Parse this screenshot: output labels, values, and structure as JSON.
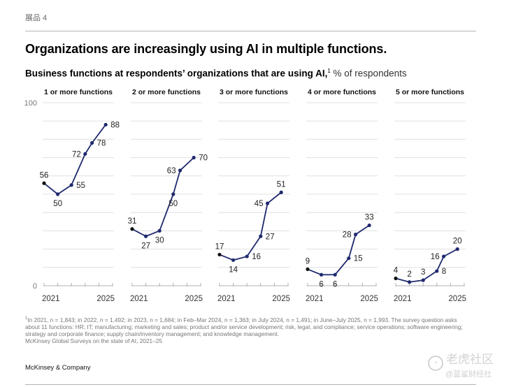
{
  "exhibit_label": "展品 4",
  "title": "Organizations are increasingly using AI in multiple functions.",
  "subtitle": {
    "main": "Business functions at respondents’ organizations that are using AI,",
    "footnote_marker": "1",
    "unit": " % of respondents"
  },
  "footnote": {
    "marker": "1",
    "text": "In 2021, n = 1,843; in 2022, n = 1,492; in 2023, n = 1,684; in Feb–Mar 2024, n = 1,363; in July 2024, n = 1,491; in June–July 2025, n = 1,993. The survey question asks about 11 functions: HR; IT; manufacturing; marketing and sales; product and/or service development; risk, legal, and compliance; service operations; software engineering; strategy and corporate finance; supply chain/inventory management; and knowledge management.",
    "source": "McKinsey Global Surveys on the state of AI, 2021–25"
  },
  "brand": "McKinsey & Company",
  "watermark": {
    "line1": "老虎社区",
    "line2": "@蓝鲨财经社"
  },
  "colors": {
    "line": "#1f2a6e",
    "first_point": "#111111",
    "grid": "#e0e0e0",
    "axis": "#b0b0b0",
    "label": "#222222"
  },
  "chart_data": {
    "type": "line",
    "title": "Organizations are increasingly using AI in multiple functions.",
    "subtitle": "Business functions at respondents’ organizations that are using AI, % of respondents",
    "ylabel": "% of respondents",
    "ylim": [
      0,
      100
    ],
    "y_tick_labels": [
      "0",
      "100"
    ],
    "grid": true,
    "x_periods": [
      "2021",
      "2022",
      "2023",
      "Feb–Mar 2024",
      "July 2024",
      "June–July 2025"
    ],
    "x_positions": [
      0,
      1,
      2,
      3,
      3.5,
      4.5
    ],
    "x_ticks": [
      0,
      1,
      2,
      3,
      4,
      5
    ],
    "x_tick_labels": [
      "2021",
      "2025"
    ],
    "panels": [
      {
        "name": "1 or more functions",
        "values": [
          56,
          50,
          55,
          72,
          78,
          88
        ]
      },
      {
        "name": "2 or more functions",
        "values": [
          31,
          27,
          30,
          50,
          63,
          70
        ]
      },
      {
        "name": "3 or more functions",
        "values": [
          17,
          14,
          16,
          27,
          45,
          51
        ]
      },
      {
        "name": "4 or more functions",
        "values": [
          9,
          6,
          6,
          15,
          28,
          33
        ]
      },
      {
        "name": "5 or more functions",
        "values": [
          4,
          2,
          3,
          8,
          16,
          20
        ]
      }
    ],
    "label_sides": [
      [
        "above",
        "below",
        "right",
        "left",
        "right",
        "right"
      ],
      [
        "above",
        "below",
        "below",
        "below",
        "left",
        "right"
      ],
      [
        "above",
        "below",
        "right",
        "right",
        "left",
        "above"
      ],
      [
        "above",
        "below",
        "below",
        "right",
        "left",
        "above"
      ],
      [
        "above",
        "above",
        "above",
        "right",
        "left",
        "above"
      ]
    ]
  }
}
